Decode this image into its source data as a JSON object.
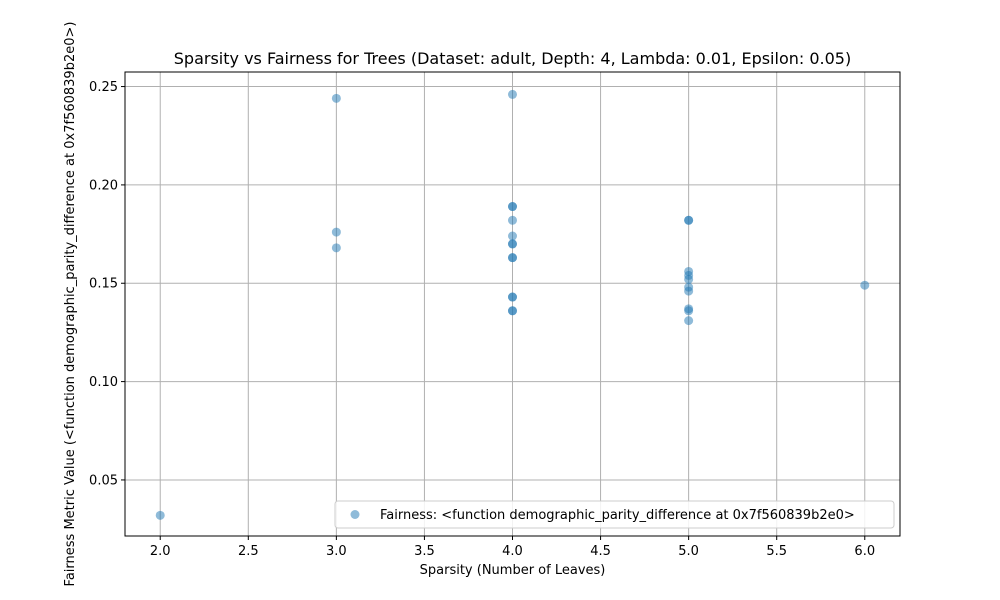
{
  "chart_data": {
    "type": "scatter",
    "title": "Sparsity vs Fairness for Trees (Dataset: adult, Depth: 4, Lambda: 0.01, Epsilon: 0.05)",
    "xlabel": "Sparsity (Number of Leaves)",
    "ylabel": "Fairness Metric Value (<function demographic_parity_difference at 0x7f560839b2e0>)",
    "xlim": [
      1.8,
      6.2
    ],
    "ylim": [
      0.0215,
      0.2574
    ],
    "xticks": [
      2.0,
      2.5,
      3.0,
      3.5,
      4.0,
      4.5,
      5.0,
      5.5,
      6.0
    ],
    "xtick_labels": [
      "2.0",
      "2.5",
      "3.0",
      "3.5",
      "4.0",
      "4.5",
      "5.0",
      "5.5",
      "6.0"
    ],
    "yticks": [
      0.05,
      0.1,
      0.15,
      0.2,
      0.25
    ],
    "ytick_labels": [
      "0.05",
      "0.10",
      "0.15",
      "0.20",
      "0.25"
    ],
    "grid": true,
    "legend_position": "lower right",
    "colors": {
      "series": "#1f77b4",
      "grid": "#b0b0b0",
      "axis": "#000000"
    },
    "series": [
      {
        "name": "Fairness: <function demographic_parity_difference at 0x7f560839b2e0>",
        "alpha": 0.5,
        "points": [
          {
            "x": 2,
            "y": 0.032
          },
          {
            "x": 3,
            "y": 0.244
          },
          {
            "x": 3,
            "y": 0.176
          },
          {
            "x": 3,
            "y": 0.168
          },
          {
            "x": 4,
            "y": 0.246
          },
          {
            "x": 4,
            "y": 0.189
          },
          {
            "x": 4,
            "y": 0.189
          },
          {
            "x": 4,
            "y": 0.182
          },
          {
            "x": 4,
            "y": 0.174
          },
          {
            "x": 4,
            "y": 0.17
          },
          {
            "x": 4,
            "y": 0.17
          },
          {
            "x": 4,
            "y": 0.163
          },
          {
            "x": 4,
            "y": 0.163
          },
          {
            "x": 4,
            "y": 0.143
          },
          {
            "x": 4,
            "y": 0.143
          },
          {
            "x": 4,
            "y": 0.136
          },
          {
            "x": 4,
            "y": 0.136
          },
          {
            "x": 5,
            "y": 0.182
          },
          {
            "x": 5,
            "y": 0.182
          },
          {
            "x": 5,
            "y": 0.156
          },
          {
            "x": 5,
            "y": 0.154
          },
          {
            "x": 5,
            "y": 0.152
          },
          {
            "x": 5,
            "y": 0.148
          },
          {
            "x": 5,
            "y": 0.146
          },
          {
            "x": 5,
            "y": 0.137
          },
          {
            "x": 5,
            "y": 0.136
          },
          {
            "x": 5,
            "y": 0.131
          },
          {
            "x": 6,
            "y": 0.149
          }
        ]
      }
    ]
  }
}
